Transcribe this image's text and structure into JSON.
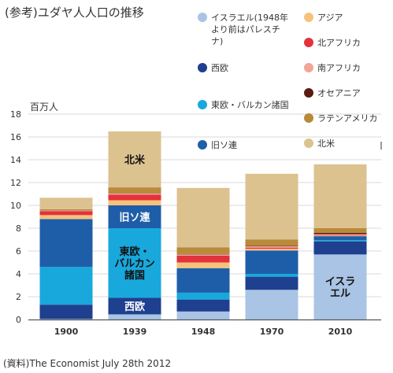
{
  "chart_data": {
    "type": "bar",
    "stacked": true,
    "title": "(参考)ユダヤ人人口の推移",
    "ylabel": "百万人",
    "source": "(資料)The Economist July 28th 2012",
    "ylim": [
      0,
      18
    ],
    "yticks": [
      0,
      2,
      4,
      6,
      8,
      10,
      12,
      14,
      16,
      18
    ],
    "grid": true,
    "categories": [
      "1900",
      "1939",
      "1948",
      "1970",
      "2010"
    ],
    "series": [
      {
        "name": "イスラエル(1948年より前はパレスチナ)",
        "color": "#a9c4e4",
        "values": [
          0.05,
          0.45,
          0.7,
          2.6,
          5.7
        ]
      },
      {
        "name": "西欧",
        "color": "#1f3f8f",
        "values": [
          1.25,
          1.45,
          1.05,
          1.15,
          1.15
        ]
      },
      {
        "name": "東欧・バルカン諸国",
        "color": "#18a8dc",
        "values": [
          3.3,
          6.1,
          0.6,
          0.25,
          0.1
        ]
      },
      {
        "name": "旧ソ連",
        "color": "#1e5ea8",
        "values": [
          4.2,
          2.0,
          2.15,
          2.05,
          0.35
        ]
      },
      {
        "name": "アジア",
        "color": "#f6c27b",
        "values": [
          0.35,
          0.45,
          0.5,
          0.15,
          0.05
        ]
      },
      {
        "name": "北アフリカ",
        "color": "#e4323a",
        "values": [
          0.35,
          0.5,
          0.6,
          0.1,
          0.05
        ]
      },
      {
        "name": "南アフリカ",
        "color": "#f2a598",
        "values": [
          0.05,
          0.1,
          0.1,
          0.12,
          0.08
        ]
      },
      {
        "name": "オセアニア",
        "color": "#5c1a10",
        "values": [
          0.02,
          0.03,
          0.03,
          0.05,
          0.12
        ]
      },
      {
        "name": "ラテンアメリカ",
        "color": "#b88a3a",
        "values": [
          0.1,
          0.5,
          0.6,
          0.55,
          0.4
        ]
      },
      {
        "name": "北米",
        "color": "#dcc28f",
        "values": [
          1.0,
          4.9,
          5.2,
          5.75,
          5.6
        ]
      }
    ],
    "legend": {
      "placement": "top-right",
      "columns": [
        [
          "イスラエル(1948年",
          "より前はパレスチ",
          "ナ)"
        ],
        "西欧",
        "東欧・バルカン諸国",
        "旧ソ連"
      ],
      "column2": [
        "アジア",
        "北アフリカ",
        "南アフリカ",
        "オセアニア",
        "ラテンアメリカ",
        "北米"
      ]
    },
    "segment_labels": [
      {
        "category": "1939",
        "series": "北米",
        "lines": [
          "北米"
        ],
        "color": "#111111"
      },
      {
        "category": "1939",
        "series": "旧ソ連",
        "lines": [
          "旧ソ連"
        ],
        "color": "#ffffff"
      },
      {
        "category": "1939",
        "series": "東欧・バルカン諸国",
        "lines": [
          "東欧・",
          "バルカン",
          "諸国"
        ],
        "color": "#111111"
      },
      {
        "category": "1939",
        "series": "西欧",
        "lines": [
          "西欧"
        ],
        "color": "#ffffff"
      },
      {
        "category": "2010",
        "series": "イスラエル(1948年より前はパレスチナ)",
        "lines": [
          "イスラ",
          "エル"
        ],
        "color": "#111111"
      }
    ]
  }
}
